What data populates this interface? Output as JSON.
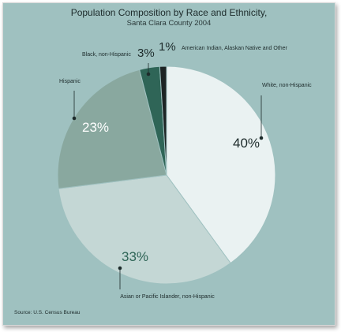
{
  "chart_data": {
    "type": "pie",
    "title": "Population Composition by Race and Ethnicity,",
    "subtitle": "Santa Clara County 2004",
    "source": "Source: U.S. Census Bureau",
    "slices": [
      {
        "label": "White, non-Hispanic",
        "value": 40,
        "value_label": "40%",
        "color": "#eaf2f2"
      },
      {
        "label": "Asian or Pacific Islander, non-Hispanic",
        "value": 33,
        "value_label": "33%",
        "color": "#c4d7d5"
      },
      {
        "label": "Hispanic",
        "value": 23,
        "value_label": "23%",
        "color": "#89a89f"
      },
      {
        "label": "Black, non-Hispanic",
        "value": 3,
        "value_label": "3%",
        "color": "#2f6557"
      },
      {
        "label": "American Indian, Alaskan Native and Other",
        "value": 1,
        "value_label": "1%",
        "color": "#1d2424"
      }
    ]
  }
}
